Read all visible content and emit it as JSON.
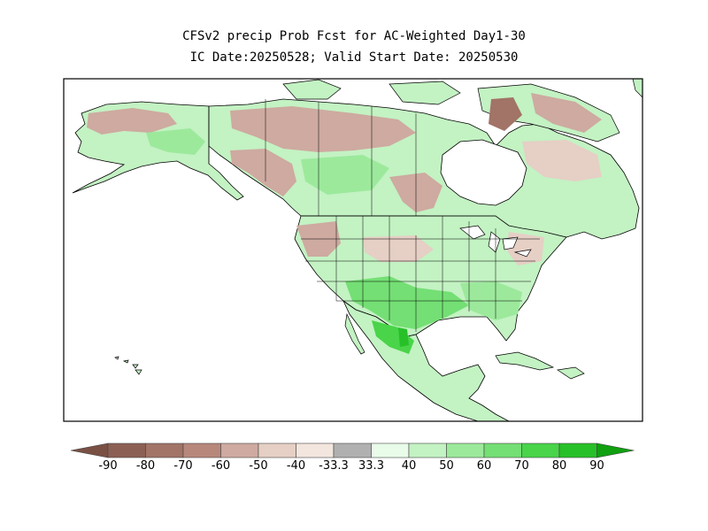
{
  "title": {
    "line1": "CFSv2 precip Prob Fcst for AC-Weighted Day1-30",
    "line2": "IC Date:20250528; Valid Start Date: 20250530"
  },
  "legend": {
    "labels": [
      "-90",
      "-80",
      "-70",
      "-60",
      "-50",
      "-40",
      "-33.3",
      "33.3",
      "40",
      "50",
      "60",
      "70",
      "80",
      "90"
    ],
    "colors": [
      "#7a5044",
      "#8c5f54",
      "#a27367",
      "#b8877b",
      "#ceaaa0",
      "#e6cfc5",
      "#f3e6de",
      "#b0b0b0",
      "#e9fbe9",
      "#c3f2c3",
      "#9ce99c",
      "#74df74",
      "#49d449",
      "#28c028",
      "#10a010"
    ]
  },
  "map": {
    "region": "North America",
    "background": "#ffffff",
    "colors": {
      "green_light": "#c3f2c3",
      "green": "#9ce99c",
      "green_mid": "#74df74",
      "green_dark": "#28c028",
      "brown_light": "#e6cfc5",
      "brown": "#ceaaa0",
      "brown_dark": "#a27367",
      "water": "#ffffff",
      "border": "#000000"
    }
  }
}
